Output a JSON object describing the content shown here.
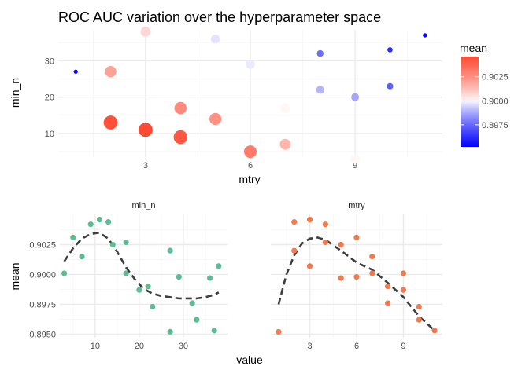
{
  "colors": {
    "low": "#0000ff",
    "mid": "#ffffff",
    "high": "#ff4a33",
    "grid_major": "#ebebeb",
    "grid_minor": "#f5f5f5",
    "facet_min_n": "#5cbd95",
    "facet_mtry": "#f27a4c",
    "smooth": "#3d3d3d"
  },
  "chart_data": [
    {
      "type": "scatter",
      "title": "ROC AUC variation over the hyperparameter space",
      "xlabel": "mtry",
      "ylabel": "min_n",
      "x_ticks": [
        3,
        6,
        9
      ],
      "y_ticks": [
        10,
        20,
        30
      ],
      "xlim": [
        0.5,
        11.5
      ],
      "ylim": [
        3.5,
        38.5
      ],
      "grid": true,
      "legend": {
        "title": "mean",
        "position": "right",
        "scale": "gradient",
        "ticks": [
          0.8975,
          0.9,
          0.9025
        ],
        "tick_labels": [
          "0.8975",
          "0.9000",
          "0.9025"
        ],
        "range": [
          0.8952,
          0.9046
        ]
      },
      "points": [
        {
          "mtry": 1,
          "min_n": 27,
          "mean": 0.8952
        },
        {
          "mtry": 2,
          "min_n": 27,
          "mean": 0.902
        },
        {
          "mtry": 2,
          "min_n": 13,
          "mean": 0.9044
        },
        {
          "mtry": 3,
          "min_n": 38,
          "mean": 0.9007
        },
        {
          "mtry": 3,
          "min_n": 11,
          "mean": 0.9046
        },
        {
          "mtry": 4,
          "min_n": 17,
          "mean": 0.9027
        },
        {
          "mtry": 4,
          "min_n": 9,
          "mean": 0.9042
        },
        {
          "mtry": 5,
          "min_n": 36,
          "mean": 0.8997
        },
        {
          "mtry": 5,
          "min_n": 14,
          "mean": 0.9025
        },
        {
          "mtry": 6,
          "min_n": 29,
          "mean": 0.8998
        },
        {
          "mtry": 6,
          "min_n": 5,
          "mean": 0.9031
        },
        {
          "mtry": 7,
          "min_n": 17,
          "mean": 0.9001
        },
        {
          "mtry": 7,
          "min_n": 7,
          "mean": 0.9015
        },
        {
          "mtry": 8,
          "min_n": 32,
          "mean": 0.8976
        },
        {
          "mtry": 8,
          "min_n": 22,
          "mean": 0.899
        },
        {
          "mtry": 9,
          "min_n": 20,
          "mean": 0.8987
        },
        {
          "mtry": 9,
          "min_n": 3,
          "mean": 0.9001
        },
        {
          "mtry": 10,
          "min_n": 33,
          "mean": 0.8962
        },
        {
          "mtry": 10,
          "min_n": 23,
          "mean": 0.8973
        },
        {
          "mtry": 11,
          "min_n": 37,
          "mean": 0.8953
        }
      ]
    },
    {
      "type": "scatter",
      "facet": "min_n",
      "xlabel": "value",
      "ylabel": "mean",
      "x_ticks": [
        10,
        20,
        30
      ],
      "y_ticks": [
        0.895,
        0.8975,
        0.9,
        0.9025
      ],
      "y_tick_labels": [
        "0.8950",
        "0.8975",
        "0.9000",
        "0.9025"
      ],
      "xlim": [
        2,
        40
      ],
      "ylim": [
        0.8947,
        0.9051
      ],
      "grid": true,
      "points": [
        {
          "x": 3,
          "y": 0.9001
        },
        {
          "x": 5,
          "y": 0.9031
        },
        {
          "x": 7,
          "y": 0.9015
        },
        {
          "x": 9,
          "y": 0.9042
        },
        {
          "x": 11,
          "y": 0.9046
        },
        {
          "x": 13,
          "y": 0.9044
        },
        {
          "x": 14,
          "y": 0.9025
        },
        {
          "x": 17,
          "y": 0.9027
        },
        {
          "x": 17,
          "y": 0.9001
        },
        {
          "x": 20,
          "y": 0.8987
        },
        {
          "x": 22,
          "y": 0.899
        },
        {
          "x": 23,
          "y": 0.8973
        },
        {
          "x": 27,
          "y": 0.902
        },
        {
          "x": 27,
          "y": 0.8952
        },
        {
          "x": 29,
          "y": 0.8998
        },
        {
          "x": 32,
          "y": 0.8976
        },
        {
          "x": 33,
          "y": 0.8962
        },
        {
          "x": 36,
          "y": 0.8997
        },
        {
          "x": 37,
          "y": 0.8953
        },
        {
          "x": 38,
          "y": 0.9007
        }
      ],
      "smooth": [
        {
          "x": 3,
          "y": 0.9011
        },
        {
          "x": 5,
          "y": 0.9022
        },
        {
          "x": 7,
          "y": 0.903
        },
        {
          "x": 9,
          "y": 0.9034
        },
        {
          "x": 11,
          "y": 0.9035
        },
        {
          "x": 13,
          "y": 0.903
        },
        {
          "x": 15,
          "y": 0.9019
        },
        {
          "x": 17,
          "y": 0.9006
        },
        {
          "x": 19,
          "y": 0.8996
        },
        {
          "x": 21,
          "y": 0.8988
        },
        {
          "x": 23,
          "y": 0.8984
        },
        {
          "x": 25,
          "y": 0.8982
        },
        {
          "x": 27,
          "y": 0.8981
        },
        {
          "x": 29,
          "y": 0.898
        },
        {
          "x": 31,
          "y": 0.898
        },
        {
          "x": 33,
          "y": 0.898
        },
        {
          "x": 35,
          "y": 0.8981
        },
        {
          "x": 37,
          "y": 0.8983
        },
        {
          "x": 38,
          "y": 0.8985
        }
      ]
    },
    {
      "type": "scatter",
      "facet": "mtry",
      "xlabel": "value",
      "ylabel": "mean",
      "x_ticks": [
        3,
        6,
        9
      ],
      "y_ticks": [
        0.895,
        0.8975,
        0.9,
        0.9025
      ],
      "y_tick_labels": [
        "0.8950",
        "0.8975",
        "0.9000",
        "0.9025"
      ],
      "xlim": [
        0.5,
        11.5
      ],
      "ylim": [
        0.8947,
        0.9051
      ],
      "grid": true,
      "points": [
        {
          "x": 1,
          "y": 0.8952
        },
        {
          "x": 2,
          "y": 0.902
        },
        {
          "x": 2,
          "y": 0.9044
        },
        {
          "x": 3,
          "y": 0.9007
        },
        {
          "x": 3,
          "y": 0.9046
        },
        {
          "x": 4,
          "y": 0.9027
        },
        {
          "x": 4,
          "y": 0.9042
        },
        {
          "x": 5,
          "y": 0.8997
        },
        {
          "x": 5,
          "y": 0.9025
        },
        {
          "x": 6,
          "y": 0.8998
        },
        {
          "x": 6,
          "y": 0.9031
        },
        {
          "x": 7,
          "y": 0.9001
        },
        {
          "x": 7,
          "y": 0.9015
        },
        {
          "x": 8,
          "y": 0.8976
        },
        {
          "x": 8,
          "y": 0.899
        },
        {
          "x": 9,
          "y": 0.8987
        },
        {
          "x": 9,
          "y": 0.9001
        },
        {
          "x": 10,
          "y": 0.8962
        },
        {
          "x": 10,
          "y": 0.8973
        },
        {
          "x": 11,
          "y": 0.8953
        }
      ],
      "smooth": [
        {
          "x": 1,
          "y": 0.8975
        },
        {
          "x": 1.5,
          "y": 0.9
        },
        {
          "x": 2,
          "y": 0.9016
        },
        {
          "x": 2.5,
          "y": 0.9026
        },
        {
          "x": 3,
          "y": 0.903
        },
        {
          "x": 3.5,
          "y": 0.9031
        },
        {
          "x": 4,
          "y": 0.9029
        },
        {
          "x": 5,
          "y": 0.902
        },
        {
          "x": 6,
          "y": 0.901
        },
        {
          "x": 7,
          "y": 0.9004
        },
        {
          "x": 8,
          "y": 0.8993
        },
        {
          "x": 9,
          "y": 0.8981
        },
        {
          "x": 10,
          "y": 0.8965
        },
        {
          "x": 11,
          "y": 0.8953
        }
      ]
    }
  ]
}
